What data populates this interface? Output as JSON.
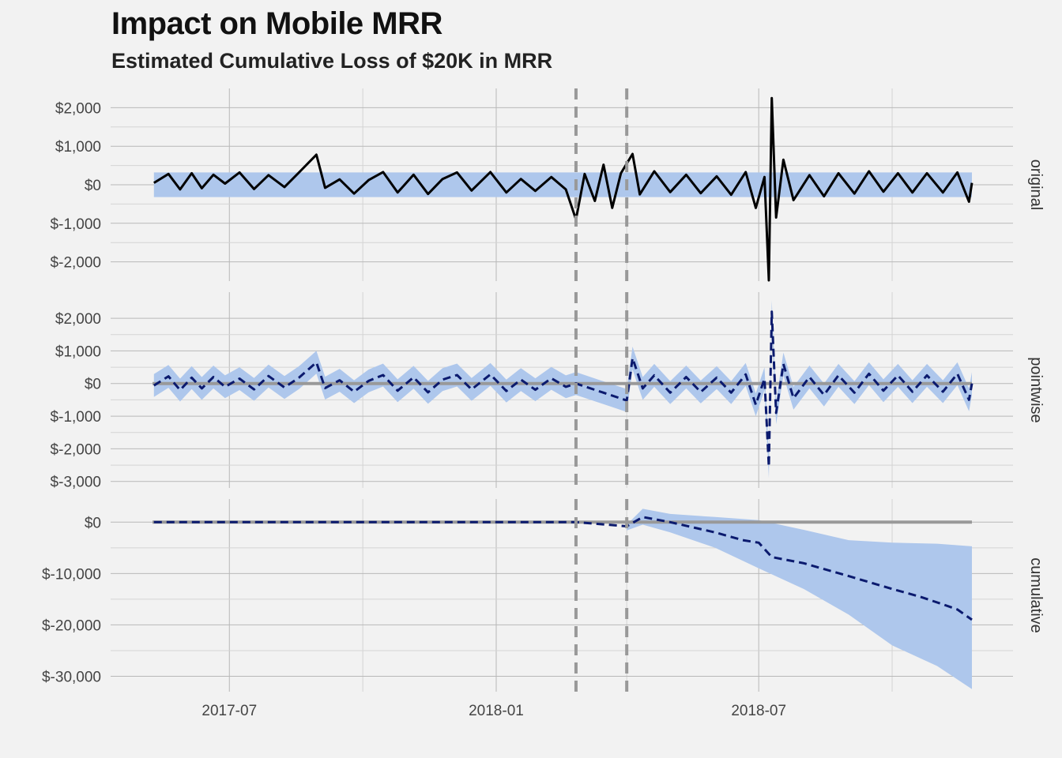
{
  "header": {
    "title": "Impact on Mobile MRR",
    "subtitle": "Estimated Cumulative Loss of $20K in MRR"
  },
  "chart_data": {
    "type": "line",
    "x_axis": {
      "kind": "date",
      "range": [
        "2017-05-09",
        "2018-11-25"
      ],
      "tick_values": [
        "2017-07-01",
        "2018-01-01",
        "2018-07-01"
      ],
      "tick_labels": [
        "2017-07",
        "2018-01",
        "2018-07"
      ],
      "minor_ticks": [
        "2017-10-01",
        "2018-04-01",
        "2018-10-01"
      ]
    },
    "colors": {
      "band": "#aec7ec",
      "observed": "#000000",
      "prediction": "#0b1a6e",
      "reference": "#999999",
      "grid": "#c8c8c8"
    },
    "markers": {
      "dates": [
        "2018-02-25",
        "2018-04-01"
      ],
      "style": "dashed",
      "color": "#999999"
    },
    "panels": [
      {
        "strip": "original",
        "y_ticks": [
          2000,
          1000,
          0,
          -1000,
          -2000
        ],
        "y_tick_labels": [
          "$2,000",
          "$1,000",
          "$0",
          "$-1,000",
          "$-2,000"
        ],
        "ylim": [
          -2500,
          2500
        ],
        "band_halfwidth": 320,
        "series": [
          {
            "role": "observed",
            "style": "solid",
            "points": [
              [
                "2017-05-10",
                50
              ],
              [
                "2017-05-20",
                280
              ],
              [
                "2017-05-28",
                -120
              ],
              [
                "2017-06-05",
                300
              ],
              [
                "2017-06-12",
                -90
              ],
              [
                "2017-06-20",
                260
              ],
              [
                "2017-06-28",
                30
              ],
              [
                "2017-07-08",
                320
              ],
              [
                "2017-07-18",
                -110
              ],
              [
                "2017-07-28",
                250
              ],
              [
                "2017-08-08",
                -60
              ],
              [
                "2017-08-18",
                320
              ],
              [
                "2017-08-30",
                780
              ],
              [
                "2017-09-05",
                -80
              ],
              [
                "2017-09-15",
                140
              ],
              [
                "2017-09-25",
                -230
              ],
              [
                "2017-10-05",
                120
              ],
              [
                "2017-10-15",
                330
              ],
              [
                "2017-10-25",
                -200
              ],
              [
                "2017-11-05",
                260
              ],
              [
                "2017-11-15",
                -240
              ],
              [
                "2017-11-25",
                150
              ],
              [
                "2017-12-05",
                320
              ],
              [
                "2017-12-15",
                -150
              ],
              [
                "2017-12-28",
                330
              ],
              [
                "2018-01-08",
                -200
              ],
              [
                "2018-01-18",
                150
              ],
              [
                "2018-01-28",
                -160
              ],
              [
                "2018-02-08",
                200
              ],
              [
                "2018-02-18",
                -120
              ],
              [
                "2018-02-25",
                -900
              ],
              [
                "2018-03-03",
                280
              ],
              [
                "2018-03-10",
                -420
              ],
              [
                "2018-03-16",
                520
              ],
              [
                "2018-03-22",
                -600
              ],
              [
                "2018-03-28",
                300
              ],
              [
                "2018-04-05",
                800
              ],
              [
                "2018-04-10",
                -250
              ],
              [
                "2018-04-20",
                350
              ],
              [
                "2018-05-01",
                -190
              ],
              [
                "2018-05-12",
                260
              ],
              [
                "2018-05-22",
                -220
              ],
              [
                "2018-06-02",
                220
              ],
              [
                "2018-06-12",
                -260
              ],
              [
                "2018-06-22",
                330
              ],
              [
                "2018-06-29",
                -600
              ],
              [
                "2018-07-05",
                200
              ],
              [
                "2018-07-08",
                -2480
              ],
              [
                "2018-07-10",
                2250
              ],
              [
                "2018-07-13",
                -850
              ],
              [
                "2018-07-18",
                650
              ],
              [
                "2018-07-25",
                -400
              ],
              [
                "2018-08-05",
                250
              ],
              [
                "2018-08-15",
                -300
              ],
              [
                "2018-08-25",
                300
              ],
              [
                "2018-09-05",
                -230
              ],
              [
                "2018-09-15",
                350
              ],
              [
                "2018-09-25",
                -180
              ],
              [
                "2018-10-05",
                300
              ],
              [
                "2018-10-15",
                -200
              ],
              [
                "2018-10-25",
                300
              ],
              [
                "2018-11-05",
                -200
              ],
              [
                "2018-11-15",
                320
              ],
              [
                "2018-11-23",
                -440
              ],
              [
                "2018-11-25",
                50
              ]
            ]
          }
        ]
      },
      {
        "strip": "pointwise",
        "y_ticks": [
          2000,
          1000,
          0,
          -1000,
          -2000,
          -3000
        ],
        "y_tick_labels": [
          "$2,000",
          "$1,000",
          "$0",
          "$-1,000",
          "$-2,000",
          "$-3,000"
        ],
        "ylim": [
          -3200,
          2800
        ],
        "band_halfwidth": 350,
        "reference_value": 0,
        "series": [
          {
            "role": "prediction",
            "style": "dashed",
            "points": [
              [
                "2017-05-10",
                -60
              ],
              [
                "2017-05-20",
                220
              ],
              [
                "2017-05-28",
                -200
              ],
              [
                "2017-06-05",
                180
              ],
              [
                "2017-06-12",
                -150
              ],
              [
                "2017-06-20",
                200
              ],
              [
                "2017-06-28",
                -100
              ],
              [
                "2017-07-08",
                150
              ],
              [
                "2017-07-18",
                -180
              ],
              [
                "2017-07-28",
                230
              ],
              [
                "2017-08-08",
                -120
              ],
              [
                "2017-08-18",
                180
              ],
              [
                "2017-08-30",
                650
              ],
              [
                "2017-09-05",
                -140
              ],
              [
                "2017-09-15",
                100
              ],
              [
                "2017-09-25",
                -250
              ],
              [
                "2017-10-05",
                80
              ],
              [
                "2017-10-15",
                260
              ],
              [
                "2017-10-25",
                -220
              ],
              [
                "2017-11-05",
                190
              ],
              [
                "2017-11-15",
                -270
              ],
              [
                "2017-11-25",
                120
              ],
              [
                "2017-12-05",
                260
              ],
              [
                "2017-12-15",
                -180
              ],
              [
                "2017-12-28",
                280
              ],
              [
                "2018-01-08",
                -230
              ],
              [
                "2018-01-18",
                120
              ],
              [
                "2018-01-28",
                -190
              ],
              [
                "2018-02-08",
                160
              ],
              [
                "2018-02-18",
                -100
              ],
              [
                "2018-02-25",
                0
              ],
              [
                "2018-04-01",
                -520
              ],
              [
                "2018-04-05",
                780
              ],
              [
                "2018-04-12",
                -150
              ],
              [
                "2018-04-20",
                250
              ],
              [
                "2018-05-01",
                -280
              ],
              [
                "2018-05-12",
                200
              ],
              [
                "2018-05-22",
                -260
              ],
              [
                "2018-06-02",
                180
              ],
              [
                "2018-06-12",
                -280
              ],
              [
                "2018-06-22",
                280
              ],
              [
                "2018-06-29",
                -650
              ],
              [
                "2018-07-05",
                150
              ],
              [
                "2018-07-08",
                -2550
              ],
              [
                "2018-07-10",
                2200
              ],
              [
                "2018-07-13",
                -900
              ],
              [
                "2018-07-18",
                600
              ],
              [
                "2018-07-25",
                -450
              ],
              [
                "2018-08-05",
                200
              ],
              [
                "2018-08-15",
                -350
              ],
              [
                "2018-08-25",
                250
              ],
              [
                "2018-09-05",
                -280
              ],
              [
                "2018-09-15",
                300
              ],
              [
                "2018-09-25",
                -220
              ],
              [
                "2018-10-05",
                250
              ],
              [
                "2018-10-15",
                -250
              ],
              [
                "2018-10-25",
                250
              ],
              [
                "2018-11-05",
                -250
              ],
              [
                "2018-11-15",
                300
              ],
              [
                "2018-11-23",
                -500
              ],
              [
                "2018-11-25",
                0
              ]
            ]
          }
        ]
      },
      {
        "strip": "cumulative",
        "y_ticks": [
          0,
          -10000,
          -20000,
          -30000
        ],
        "y_tick_labels": [
          "$0",
          "$-10,000",
          "$-20,000",
          "$-30,000"
        ],
        "minor_y_ticks": [
          -5000,
          -15000,
          -25000
        ],
        "ylim": [
          -33000,
          4500
        ],
        "reference_value": 0,
        "band_start": "2018-04-01",
        "band_upper": [
          [
            "2018-04-01",
            -500
          ],
          [
            "2018-04-12",
            2600
          ],
          [
            "2018-05-01",
            1600
          ],
          [
            "2018-06-01",
            1000
          ],
          [
            "2018-07-01",
            400
          ],
          [
            "2018-08-01",
            -1500
          ],
          [
            "2018-09-01",
            -3500
          ],
          [
            "2018-10-01",
            -4000
          ],
          [
            "2018-11-01",
            -4200
          ],
          [
            "2018-11-25",
            -4700
          ]
        ],
        "band_lower": [
          [
            "2018-04-01",
            -1600
          ],
          [
            "2018-04-12",
            -500
          ],
          [
            "2018-05-01",
            -2000
          ],
          [
            "2018-06-01",
            -5000
          ],
          [
            "2018-07-01",
            -9000
          ],
          [
            "2018-08-01",
            -13000
          ],
          [
            "2018-09-01",
            -18000
          ],
          [
            "2018-10-01",
            -24000
          ],
          [
            "2018-11-01",
            -28000
          ],
          [
            "2018-11-25",
            -32500
          ]
        ],
        "series": [
          {
            "role": "prediction",
            "style": "dashed",
            "points": [
              [
                "2017-05-10",
                0
              ],
              [
                "2018-02-25",
                0
              ],
              [
                "2018-04-01",
                -800
              ],
              [
                "2018-04-12",
                1000
              ],
              [
                "2018-05-01",
                0
              ],
              [
                "2018-06-01",
                -2000
              ],
              [
                "2018-06-20",
                -3500
              ],
              [
                "2018-07-01",
                -4000
              ],
              [
                "2018-07-10",
                -6800
              ],
              [
                "2018-08-01",
                -8000
              ],
              [
                "2018-09-01",
                -10500
              ],
              [
                "2018-10-01",
                -13000
              ],
              [
                "2018-10-20",
                -14500
              ],
              [
                "2018-11-05",
                -16000
              ],
              [
                "2018-11-15",
                -17000
              ],
              [
                "2018-11-25",
                -19000
              ]
            ]
          }
        ]
      }
    ]
  }
}
